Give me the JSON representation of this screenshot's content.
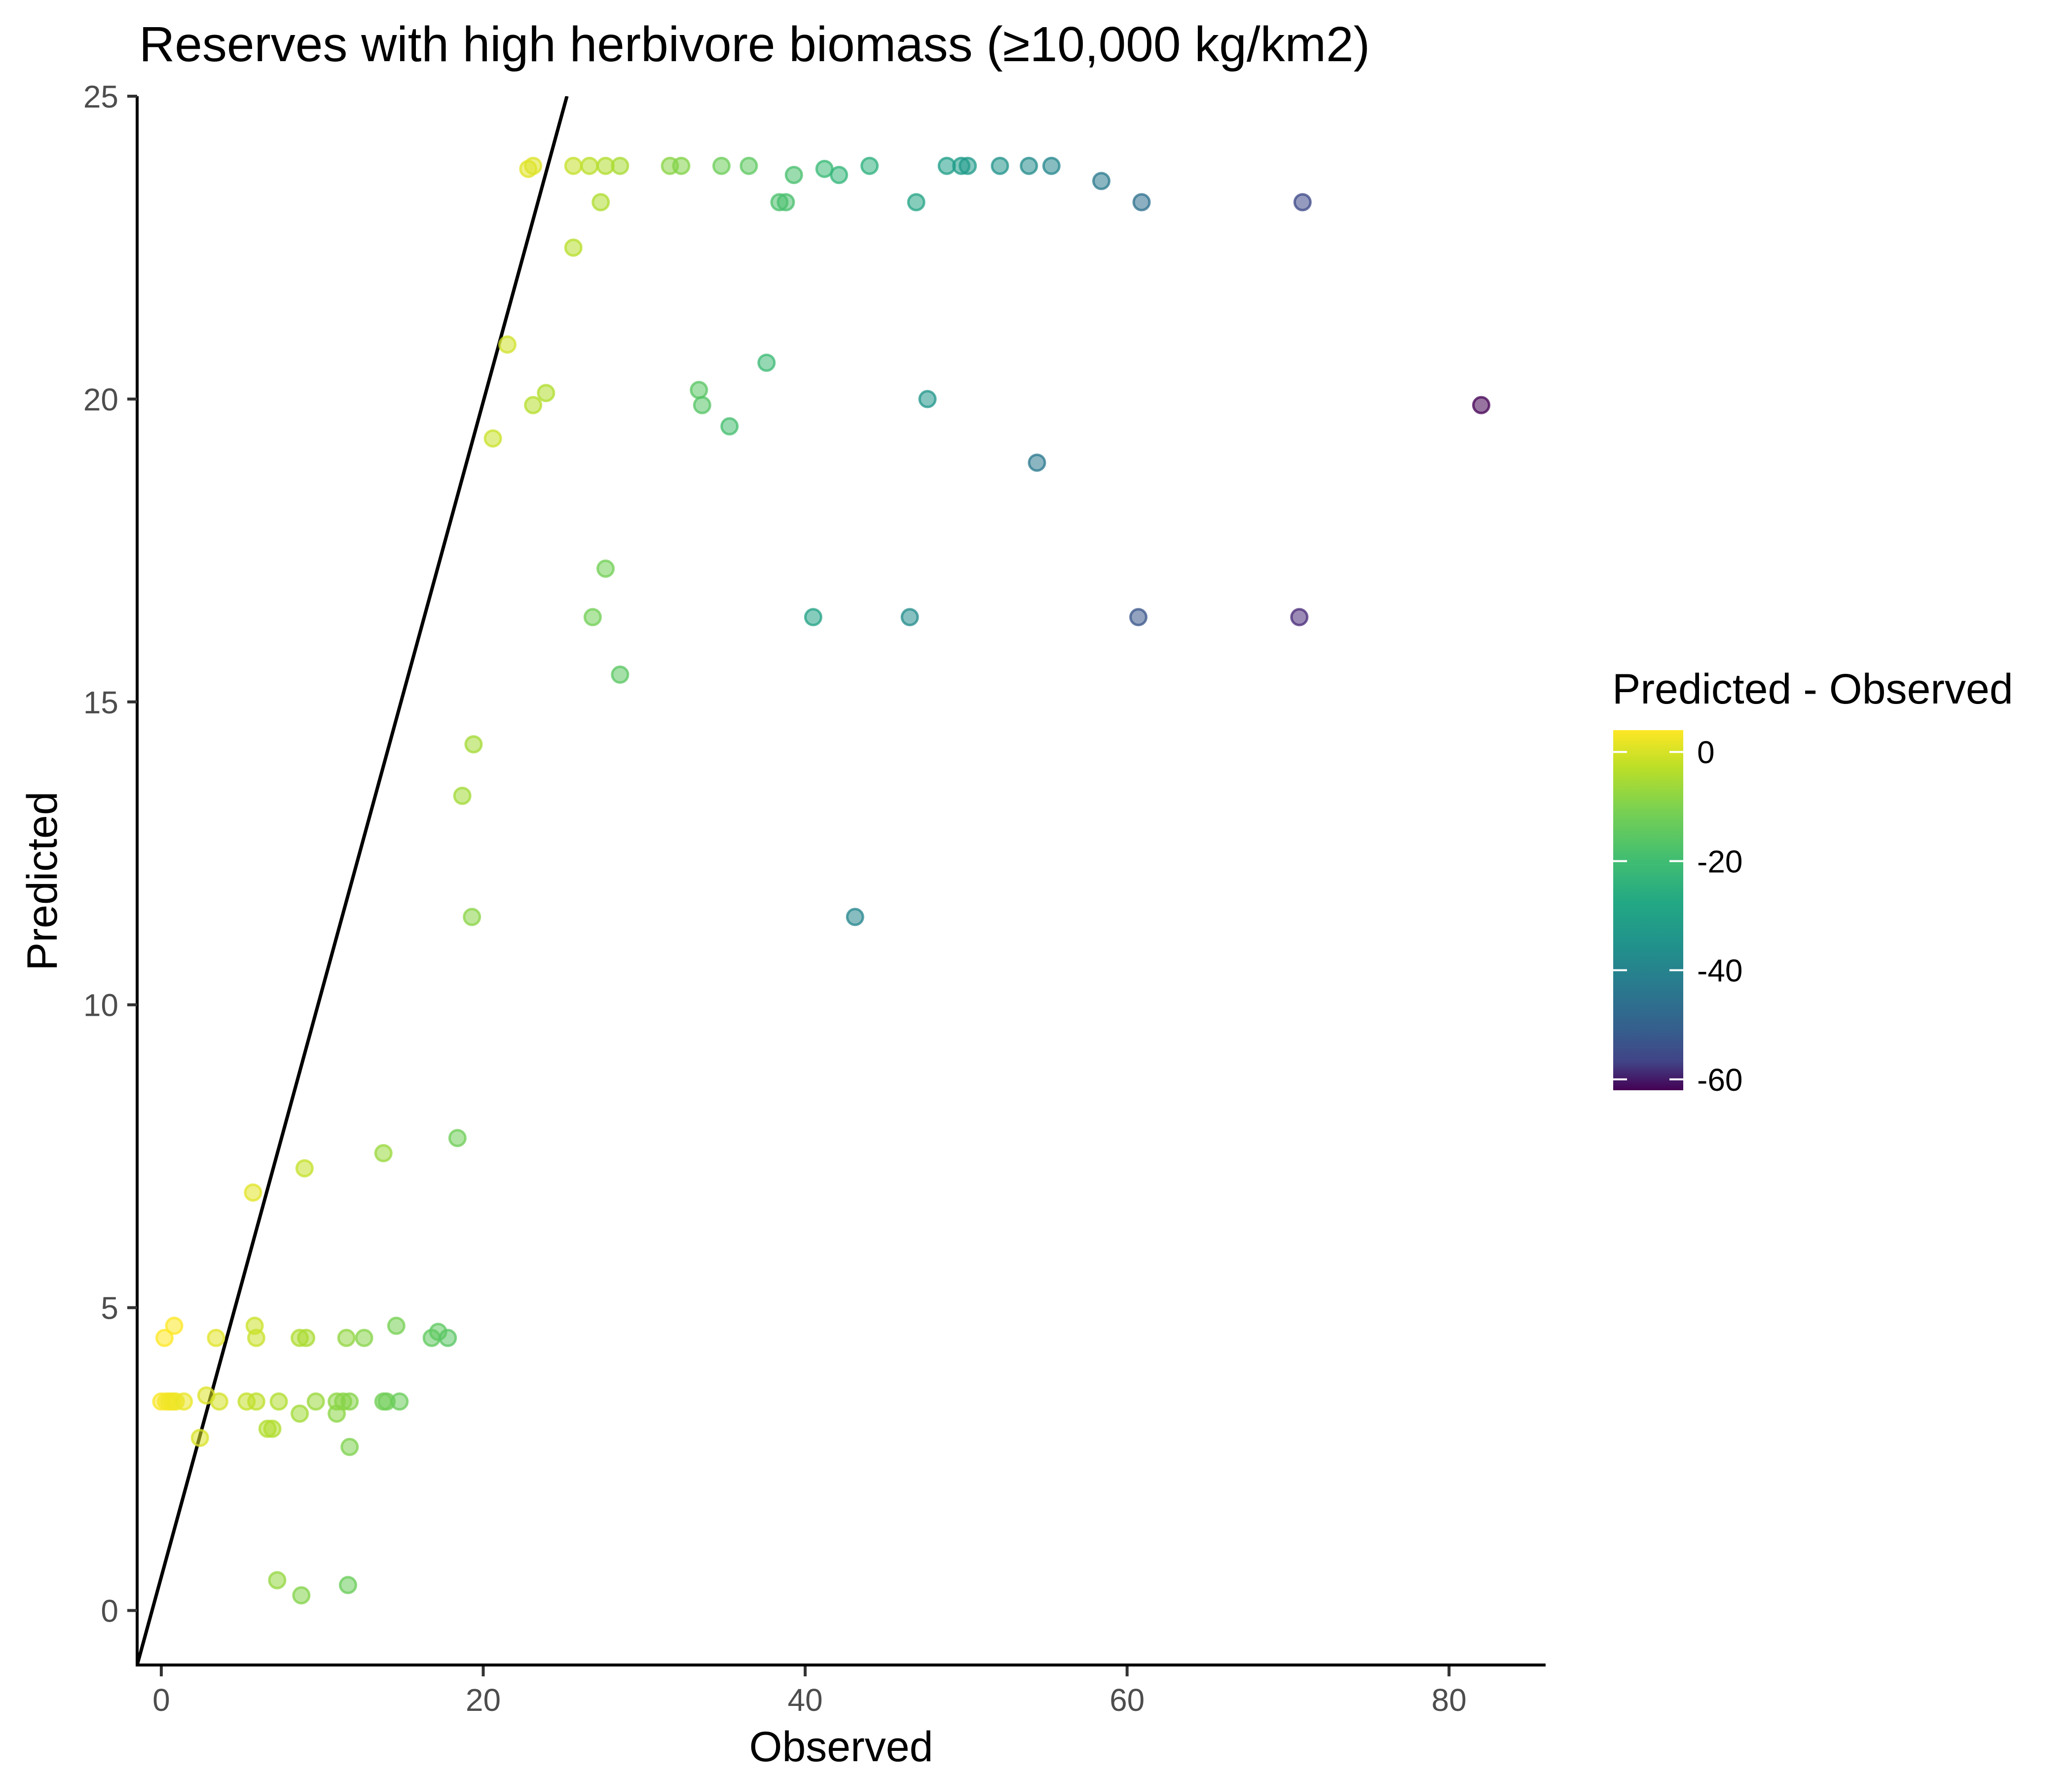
{
  "chart_data": {
    "type": "scatter",
    "title": "Reserves with high herbivore biomass (≥10,000 kg/km2)",
    "xlabel": "Observed",
    "ylabel": "Predicted",
    "xlim": [
      -1.5,
      86
    ],
    "ylim": [
      -0.9,
      25
    ],
    "xticks": [
      0,
      20,
      40,
      60,
      80
    ],
    "yticks": [
      0,
      5,
      10,
      15,
      20,
      25
    ],
    "grid": false,
    "reference_line": {
      "x": [
        -1.5,
        25.2
      ],
      "y": [
        -0.9,
        25.0
      ]
    },
    "color_scale": {
      "title": "Predicted - Observed",
      "palette": "viridis",
      "range": [
        -62,
        4
      ],
      "ticks": [
        0,
        -20,
        -40,
        -60
      ],
      "legend_position": "right"
    },
    "points": [
      [
        0.2,
        4.5
      ],
      [
        0.8,
        4.7
      ],
      [
        3.4,
        4.5
      ],
      [
        5.8,
        4.7
      ],
      [
        5.9,
        4.5
      ],
      [
        8.6,
        4.5
      ],
      [
        9.0,
        4.5
      ],
      [
        11.5,
        4.5
      ],
      [
        12.6,
        4.5
      ],
      [
        14.6,
        4.7
      ],
      [
        16.8,
        4.5
      ],
      [
        17.2,
        4.6
      ],
      [
        17.8,
        4.5
      ],
      [
        0.0,
        3.45
      ],
      [
        0.3,
        3.45
      ],
      [
        0.5,
        3.45
      ],
      [
        0.7,
        3.45
      ],
      [
        0.9,
        3.45
      ],
      [
        1.4,
        3.45
      ],
      [
        2.8,
        3.55
      ],
      [
        3.6,
        3.45
      ],
      [
        5.3,
        3.45
      ],
      [
        5.9,
        3.45
      ],
      [
        7.3,
        3.45
      ],
      [
        9.6,
        3.45
      ],
      [
        10.9,
        3.45
      ],
      [
        11.3,
        3.45
      ],
      [
        11.7,
        3.45
      ],
      [
        13.8,
        3.45
      ],
      [
        14.0,
        3.45
      ],
      [
        14.8,
        3.45
      ],
      [
        2.4,
        2.85
      ],
      [
        6.6,
        3.0
      ],
      [
        6.9,
        3.0
      ],
      [
        8.6,
        3.25
      ],
      [
        10.9,
        3.25
      ],
      [
        11.7,
        2.7
      ],
      [
        7.2,
        0.5
      ],
      [
        8.7,
        0.25
      ],
      [
        11.6,
        0.42
      ],
      [
        5.7,
        6.9
      ],
      [
        8.9,
        7.3
      ],
      [
        13.8,
        7.55
      ],
      [
        18.4,
        7.8
      ],
      [
        19.3,
        11.45
      ],
      [
        18.7,
        13.45
      ],
      [
        19.4,
        14.3
      ],
      [
        26.8,
        16.4
      ],
      [
        27.6,
        17.2
      ],
      [
        28.5,
        15.45
      ],
      [
        20.6,
        19.35
      ],
      [
        21.5,
        20.9
      ],
      [
        23.1,
        19.9
      ],
      [
        23.9,
        20.1
      ],
      [
        25.6,
        22.5
      ],
      [
        22.8,
        23.8
      ],
      [
        23.1,
        23.85
      ],
      [
        25.6,
        23.85
      ],
      [
        26.6,
        23.85
      ],
      [
        27.6,
        23.85
      ],
      [
        28.5,
        23.85
      ],
      [
        31.6,
        23.85
      ],
      [
        32.3,
        23.85
      ],
      [
        34.8,
        23.85
      ],
      [
        36.5,
        23.85
      ],
      [
        27.3,
        23.25
      ],
      [
        38.4,
        23.25
      ],
      [
        38.8,
        23.25
      ],
      [
        39.3,
        23.7
      ],
      [
        41.2,
        23.8
      ],
      [
        42.1,
        23.7
      ],
      [
        44.0,
        23.85
      ],
      [
        46.9,
        23.25
      ],
      [
        48.8,
        23.85
      ],
      [
        49.7,
        23.85
      ],
      [
        50.1,
        23.85
      ],
      [
        52.1,
        23.85
      ],
      [
        53.9,
        23.85
      ],
      [
        55.3,
        23.85
      ],
      [
        58.4,
        23.6
      ],
      [
        60.9,
        23.25
      ],
      [
        70.9,
        23.25
      ],
      [
        33.4,
        20.15
      ],
      [
        33.6,
        19.9
      ],
      [
        35.3,
        19.55
      ],
      [
        37.6,
        20.6
      ],
      [
        47.6,
        20.0
      ],
      [
        54.4,
        18.95
      ],
      [
        82.0,
        19.9
      ],
      [
        40.5,
        16.4
      ],
      [
        46.5,
        16.4
      ],
      [
        60.7,
        16.4
      ],
      [
        70.7,
        16.4
      ],
      [
        43.1,
        11.45
      ]
    ]
  }
}
